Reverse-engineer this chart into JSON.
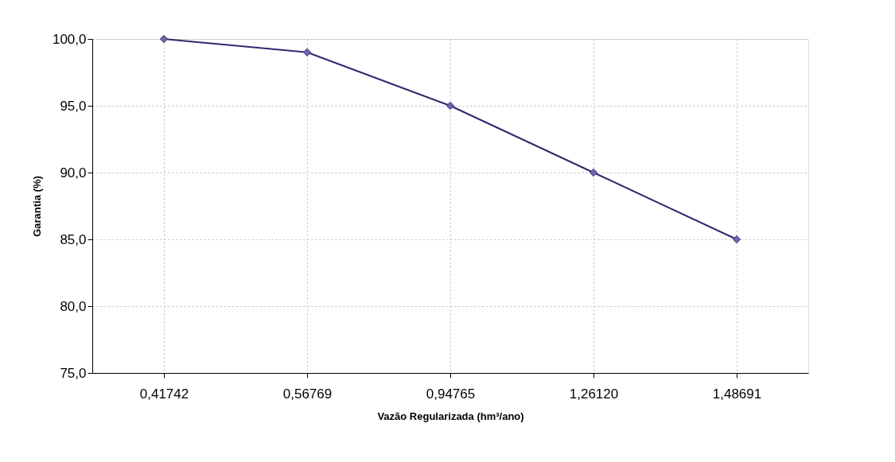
{
  "chart_data": {
    "type": "line",
    "xlabel": "Vazão Regularizada (hm³/ano)",
    "ylabel": "Garantia (%)",
    "categories": [
      "0,41742",
      "0,56769",
      "0,94765",
      "1,26120",
      "1,48691"
    ],
    "series": [
      {
        "color": "#2e2a6e",
        "values": [
          100,
          99,
          95,
          90,
          85
        ]
      }
    ],
    "ylim": [
      75,
      100
    ],
    "yticks": [
      {
        "value": 75,
        "label": "75,0"
      },
      {
        "value": 80,
        "label": "80,0"
      },
      {
        "value": 85,
        "label": "85,0"
      },
      {
        "value": 90,
        "label": "90,0"
      },
      {
        "value": 95,
        "label": "95,0"
      },
      {
        "value": 100,
        "label": "100,0"
      }
    ],
    "grid": true,
    "marker": "diamond",
    "line_style": "solid"
  }
}
